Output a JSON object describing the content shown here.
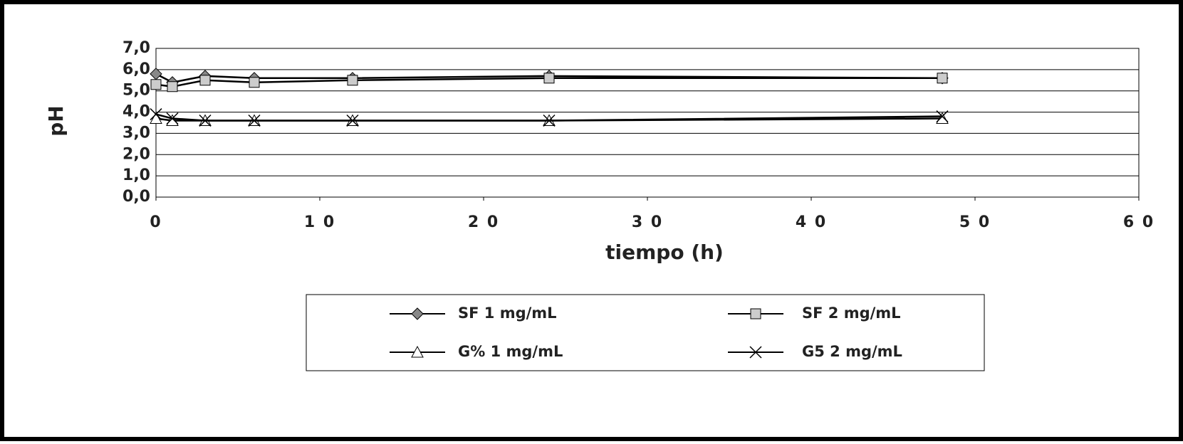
{
  "chart_data": {
    "type": "line",
    "x_label": "tiempo (h)",
    "y_label": "pH",
    "x": [
      0,
      1,
      3,
      6,
      12,
      24,
      48
    ],
    "series": [
      {
        "name": "SF 1 mg/mL",
        "color": "#888888",
        "marker": "diamond",
        "values": [
          5.8,
          5.4,
          5.7,
          5.6,
          5.6,
          5.7,
          5.6
        ]
      },
      {
        "name": "SF 2 mg/mL",
        "color": "#cccccc",
        "marker": "square",
        "values": [
          5.3,
          5.2,
          5.5,
          5.4,
          5.5,
          5.6,
          5.6
        ]
      },
      {
        "name": "G% 1 mg/mL",
        "color": "#ffffff",
        "marker": "triangle",
        "values": [
          3.7,
          3.6,
          3.6,
          3.6,
          3.6,
          3.6,
          3.7
        ]
      },
      {
        "name": "G5 2 mg/mL",
        "color": "#000000",
        "marker": "cross",
        "values": [
          3.9,
          3.7,
          3.6,
          3.6,
          3.6,
          3.6,
          3.8
        ]
      }
    ],
    "xlim": [
      0,
      60
    ],
    "xticks": [
      0,
      {
        "value": 10,
        "label": "1 0"
      },
      {
        "value": 20,
        "label": "2 0"
      },
      {
        "value": 30,
        "label": "3 0"
      },
      {
        "value": 40,
        "label": "4 0"
      },
      {
        "value": 50,
        "label": "5 0"
      },
      {
        "value": 60,
        "label": "6 0"
      }
    ],
    "ylim": [
      0,
      7
    ],
    "yticks": [
      {
        "value": 0,
        "label": "0,0"
      },
      {
        "value": 1,
        "label": "1,0"
      },
      {
        "value": 2,
        "label": "2,0"
      },
      {
        "value": 3,
        "label": "3,0"
      },
      {
        "value": 4,
        "label": "4,0"
      },
      {
        "value": 5,
        "label": "5,0"
      },
      {
        "value": 6,
        "label": "6,0"
      },
      {
        "value": 7,
        "label": "7,0"
      }
    ],
    "grid": true,
    "legend": "bottom"
  }
}
